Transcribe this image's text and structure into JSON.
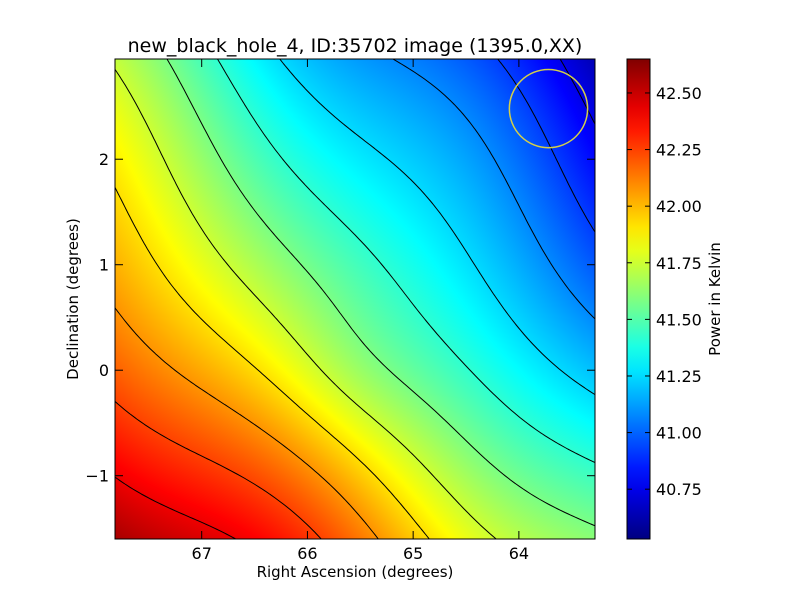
{
  "chart_data": {
    "type": "heatmap",
    "title": "new_black_hole_4, ID:35702 image (1395.0,XX)",
    "xlabel": "Right Ascension (degrees)",
    "ylabel": "Declination (degrees)",
    "colorbar_label": "Power in Kelvin",
    "colormap": "jet",
    "xlim": [
      67.82,
      63.28
    ],
    "ylim": [
      -1.6,
      2.95
    ],
    "x_ticks": [
      67,
      66,
      65,
      64
    ],
    "x_tick_labels": [
      "67",
      "66",
      "65",
      "64"
    ],
    "y_ticks": [
      -1,
      0,
      1,
      2
    ],
    "y_tick_labels": [
      "−1",
      "0",
      "1",
      "2"
    ],
    "colorbar_range": [
      40.53,
      42.65
    ],
    "colorbar_ticks": [
      40.75,
      41.0,
      41.25,
      41.5,
      41.75,
      42.0,
      42.25,
      42.5
    ],
    "colorbar_tick_labels": [
      "40.75",
      "41.00",
      "41.25",
      "41.50",
      "41.75",
      "42.00",
      "42.25",
      "42.50"
    ],
    "field": {
      "description": "smooth gradient, max at lower-left, min at upper-right",
      "max_value": 42.6,
      "max_position": [
        67.8,
        -1.6
      ],
      "min_value": 40.6,
      "min_position": [
        63.6,
        2.5
      ]
    },
    "contour_levels": [
      40.75,
      40.92,
      41.08,
      41.25,
      41.42,
      41.58,
      41.75,
      41.92,
      42.08,
      42.25,
      42.42,
      42.58
    ],
    "circle_marker": {
      "center": [
        63.72,
        2.48
      ],
      "radius_deg": 0.37,
      "color": "#d4cf4a"
    }
  }
}
